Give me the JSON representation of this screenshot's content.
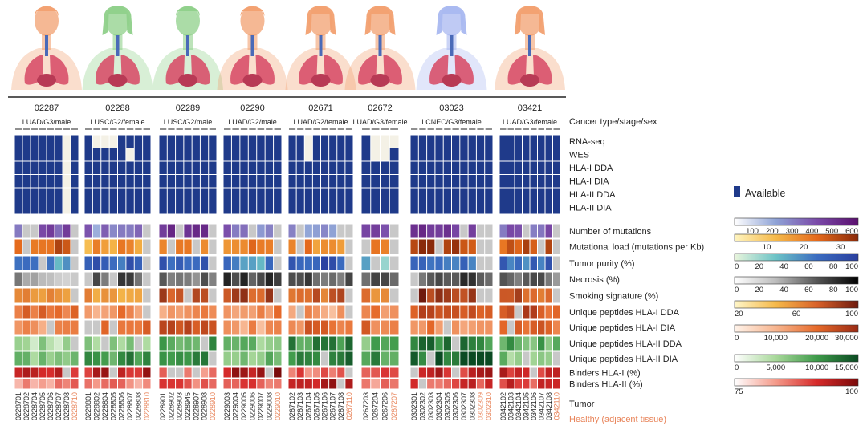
{
  "patients": [
    {
      "id": "02287",
      "info": "LUAD/G3/male",
      "sex": "male",
      "color": "orange",
      "samples": [
        "0228701",
        "0228702",
        "0228704",
        "0228705",
        "0228706",
        "0228707",
        "0228708",
        "0228710"
      ],
      "healthy": [
        false,
        false,
        false,
        false,
        false,
        false,
        false,
        true
      ]
    },
    {
      "id": "02288",
      "info": "LUSC/G2/female",
      "sex": "female",
      "color": "green",
      "samples": [
        "0228801",
        "0228802",
        "0228804",
        "0228805",
        "0228806",
        "0228807",
        "0228808",
        "0228810"
      ],
      "healthy": [
        false,
        false,
        false,
        false,
        false,
        false,
        false,
        true
      ]
    },
    {
      "id": "02289",
      "info": "LUSC/G2/male",
      "sex": "male",
      "color": "green",
      "samples": [
        "0228901",
        "0228902",
        "0228903",
        "0228945",
        "0228907",
        "0228908",
        "0228910"
      ],
      "healthy": [
        false,
        false,
        false,
        false,
        false,
        false,
        true
      ]
    },
    {
      "id": "02290",
      "info": "LUAD/G2/male",
      "sex": "male",
      "color": "orange",
      "samples": [
        "0229003",
        "0229004",
        "0229005",
        "0229006",
        "0229007",
        "0229008",
        "0229010"
      ],
      "healthy": [
        false,
        false,
        false,
        false,
        false,
        false,
        true
      ]
    },
    {
      "id": "02671",
      "info": "LUAD/G2/female",
      "sex": "female",
      "color": "orange",
      "samples": [
        "0267102",
        "0267103",
        "0267104",
        "0267105",
        "0267106",
        "0267107",
        "0267108",
        "0267110"
      ],
      "healthy": [
        false,
        false,
        false,
        false,
        false,
        false,
        false,
        true
      ]
    },
    {
      "id": "02672",
      "info": "LUAD/G3/female",
      "sex": "female",
      "color": "orange",
      "samples": [
        "0267203",
        "0267204",
        "0267206",
        "0267207"
      ],
      "healthy": [
        false,
        false,
        false,
        true
      ]
    },
    {
      "id": "03023",
      "info": "LCNEC/G3/female",
      "sex": "female",
      "color": "blue",
      "samples": [
        "0302301",
        "0302302",
        "0302303",
        "0302304",
        "0302305",
        "0302306",
        "0302307",
        "0302308",
        "0302309",
        "0302310"
      ],
      "healthy": [
        false,
        false,
        false,
        false,
        false,
        false,
        false,
        false,
        true,
        true
      ]
    },
    {
      "id": "03421",
      "info": "LUAD/G3/female",
      "sex": "female",
      "color": "orange",
      "samples": [
        "0342102",
        "0342103",
        "0342104",
        "0342105",
        "0342106",
        "0342107",
        "0342108",
        "0342110"
      ],
      "healthy": [
        false,
        false,
        false,
        false,
        false,
        false,
        false,
        true
      ]
    }
  ],
  "row_labels": {
    "cancer_type": "Cancer type/stage/sex",
    "availability": [
      "RNA-seq",
      "WES",
      "HLA-I DDA",
      "HLA-I DIA",
      "HLA-II DDA",
      "HLA-II DIA"
    ],
    "metrics": [
      "Number of mutations",
      "Mutational load (mutations per Kb)",
      "Tumor purity (%)",
      "Necrosis (%)",
      "Smoking signature (%)",
      "Unique peptides HLA-I DDA",
      "Unique peptides HLA-I DIA",
      "Unique peptides HLA-II DDA",
      "Unique peptides HLA-II DIA",
      "Binders HLA-I (%)",
      "Binders HLA-II (%)"
    ]
  },
  "legend": {
    "available": "Available",
    "available_color": "#1f3a8a",
    "bars": [
      {
        "ticks": [
          "100",
          "200",
          "300",
          "400",
          "500",
          "600"
        ],
        "colors": [
          "#ffffff",
          "#8fa3d6",
          "#7a4aa8",
          "#5a0f6e"
        ]
      },
      {
        "ticks": [
          "10",
          "20",
          "30"
        ],
        "colors": [
          "#fff5c0",
          "#f5b94a",
          "#e56a1c",
          "#8a2a0a"
        ]
      },
      {
        "ticks": [
          "0",
          "20",
          "40",
          "60",
          "80",
          "100"
        ],
        "colors": [
          "#e9f5dc",
          "#6cc3c6",
          "#3b6cc0",
          "#2a3f9e"
        ]
      },
      {
        "ticks": [
          "0",
          "20",
          "40",
          "60",
          "80",
          "100"
        ],
        "colors": [
          "#ffffff",
          "#bdbdbd",
          "#555555",
          "#000000"
        ]
      },
      {
        "ticks": [
          "20",
          "60",
          "100"
        ],
        "colors": [
          "#fff6c8",
          "#f5b94a",
          "#d9622a",
          "#6e1a0e"
        ]
      },
      {
        "ticks": [
          "0",
          "10,000",
          "20,000",
          "30,000"
        ],
        "colors": [
          "#fff3ea",
          "#f7b58f",
          "#e66a2a",
          "#9a2a14"
        ]
      },
      {
        "ticks": [
          "0",
          "5,000",
          "10,000",
          "15,000"
        ],
        "colors": [
          "#ffffff",
          "#a8d89a",
          "#3e9a4a",
          "#0a4a22"
        ]
      },
      {
        "ticks": [
          "75",
          "100"
        ],
        "colors": [
          "#ffffff",
          "#f49a8a",
          "#d62a2a",
          "#7a0a0a"
        ]
      }
    ]
  },
  "bottom_legend": {
    "tumor": "Tumor",
    "healthy": "Healthy (adjacent tissue)"
  },
  "colors": {
    "healthy_text": "#e8845a",
    "missing": "#c8c8c8",
    "blue": "#1f3a8a"
  }
}
